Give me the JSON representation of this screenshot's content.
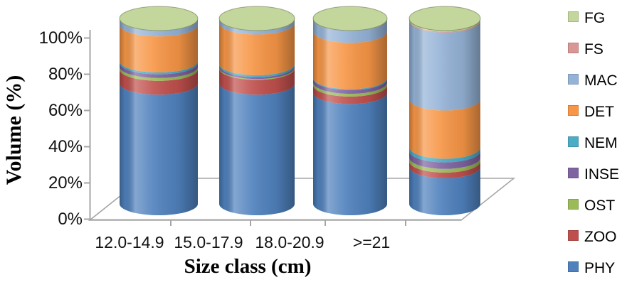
{
  "chart_data": {
    "type": "bar",
    "subtype": "3d-cylinder-100pct-stacked",
    "title": "",
    "xlabel": "Size class (cm)",
    "ylabel": "Volume (%)",
    "categories": [
      "12.0-14.9",
      "15.0-17.9",
      "18.0-20.9",
      ">=21"
    ],
    "series": [
      {
        "name": "PHY",
        "color": "#4F81BD",
        "values": [
          65,
          65,
          60,
          20
        ]
      },
      {
        "name": "ZOO",
        "color": "#C0504D",
        "values": [
          7.5,
          8,
          4,
          3
        ]
      },
      {
        "name": "OST",
        "color": "#9BBB59",
        "values": [
          1.5,
          0.5,
          1.5,
          2
        ]
      },
      {
        "name": "INSE",
        "color": "#8064A2",
        "values": [
          2,
          1,
          2,
          3.5
        ]
      },
      {
        "name": "NEM",
        "color": "#4BACC6",
        "values": [
          1,
          1,
          0.5,
          2
        ]
      },
      {
        "name": "DET",
        "color": "#F79646",
        "values": [
          19.5,
          22,
          25,
          26
        ]
      },
      {
        "name": "MAC",
        "color": "#95B3D7",
        "values": [
          3,
          2,
          6.5,
          42
        ]
      },
      {
        "name": "FS",
        "color": "#D99694",
        "values": [
          0,
          0,
          0,
          0.5
        ]
      },
      {
        "name": "FG",
        "color": "#C3D69B",
        "values": [
          0.5,
          0.5,
          0.5,
          1
        ]
      }
    ],
    "stack_order": "bottom-to-top",
    "units": "percent",
    "ylim": [
      0,
      100
    ],
    "y_tick_labels": [
      "0%",
      "20%",
      "40%",
      "60%",
      "80%",
      "100%"
    ],
    "grid": false,
    "legend_position": "right",
    "legend_order_top_to_bottom": [
      "FG",
      "FS",
      "MAC",
      "DET",
      "NEM",
      "INSE",
      "OST",
      "ZOO",
      "PHY"
    ]
  },
  "axis_color": "#A6A6A6"
}
